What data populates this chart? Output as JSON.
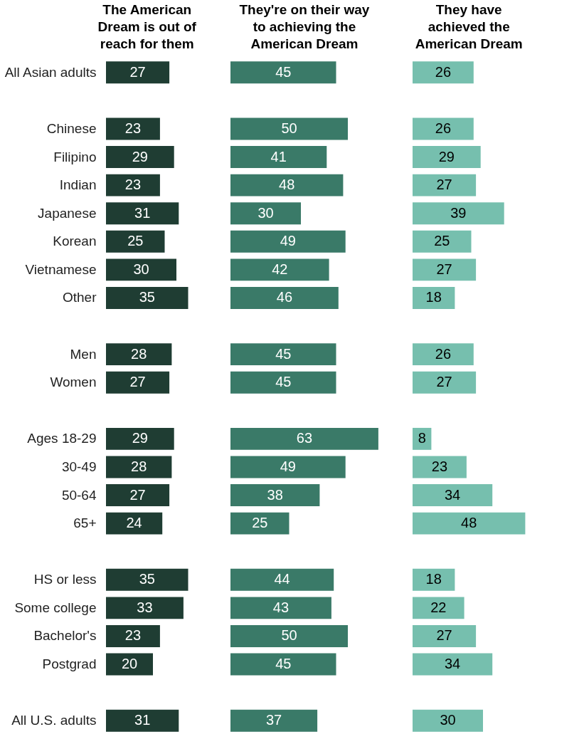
{
  "chart_data": [
    {
      "type": "bar",
      "orientation": "horizontal",
      "title": "The American\nDream is out of\nreach for them",
      "tick_labels": "y",
      "data_labels": true,
      "color": "#1f3d33",
      "categories": [
        "All Asian adults",
        null,
        "Chinese",
        "Filipino",
        "Indian",
        "Japanese",
        "Korean",
        "Vietnamese",
        "Other",
        null,
        "Men",
        "Women",
        null,
        "Ages 18-29",
        "30-49",
        "50-64",
        "65+",
        null,
        "HS or less",
        "Some college",
        "Bachelor's",
        "Postgrad",
        null,
        "All U.S. adults"
      ],
      "values": [
        27,
        null,
        23,
        29,
        23,
        31,
        25,
        30,
        35,
        null,
        28,
        27,
        null,
        29,
        28,
        27,
        24,
        null,
        35,
        33,
        23,
        20,
        null,
        31
      ]
    },
    {
      "type": "bar",
      "orientation": "horizontal",
      "title": "They're on their way\nto achieving the\nAmerican Dream",
      "tick_labels": false,
      "data_labels": true,
      "color": "#3a7a68",
      "values": [
        45,
        null,
        50,
        41,
        48,
        30,
        49,
        42,
        46,
        null,
        45,
        45,
        null,
        63,
        49,
        38,
        25,
        null,
        44,
        43,
        50,
        45,
        null,
        37
      ]
    },
    {
      "type": "bar",
      "orientation": "horizontal",
      "title": "They have\nachieved the\nAmerican Dream",
      "tick_labels": false,
      "data_labels": true,
      "color": "#76bfae",
      "values": [
        26,
        null,
        26,
        29,
        27,
        39,
        25,
        27,
        18,
        null,
        26,
        27,
        null,
        8,
        23,
        34,
        48,
        null,
        18,
        22,
        27,
        34,
        null,
        30
      ]
    }
  ]
}
